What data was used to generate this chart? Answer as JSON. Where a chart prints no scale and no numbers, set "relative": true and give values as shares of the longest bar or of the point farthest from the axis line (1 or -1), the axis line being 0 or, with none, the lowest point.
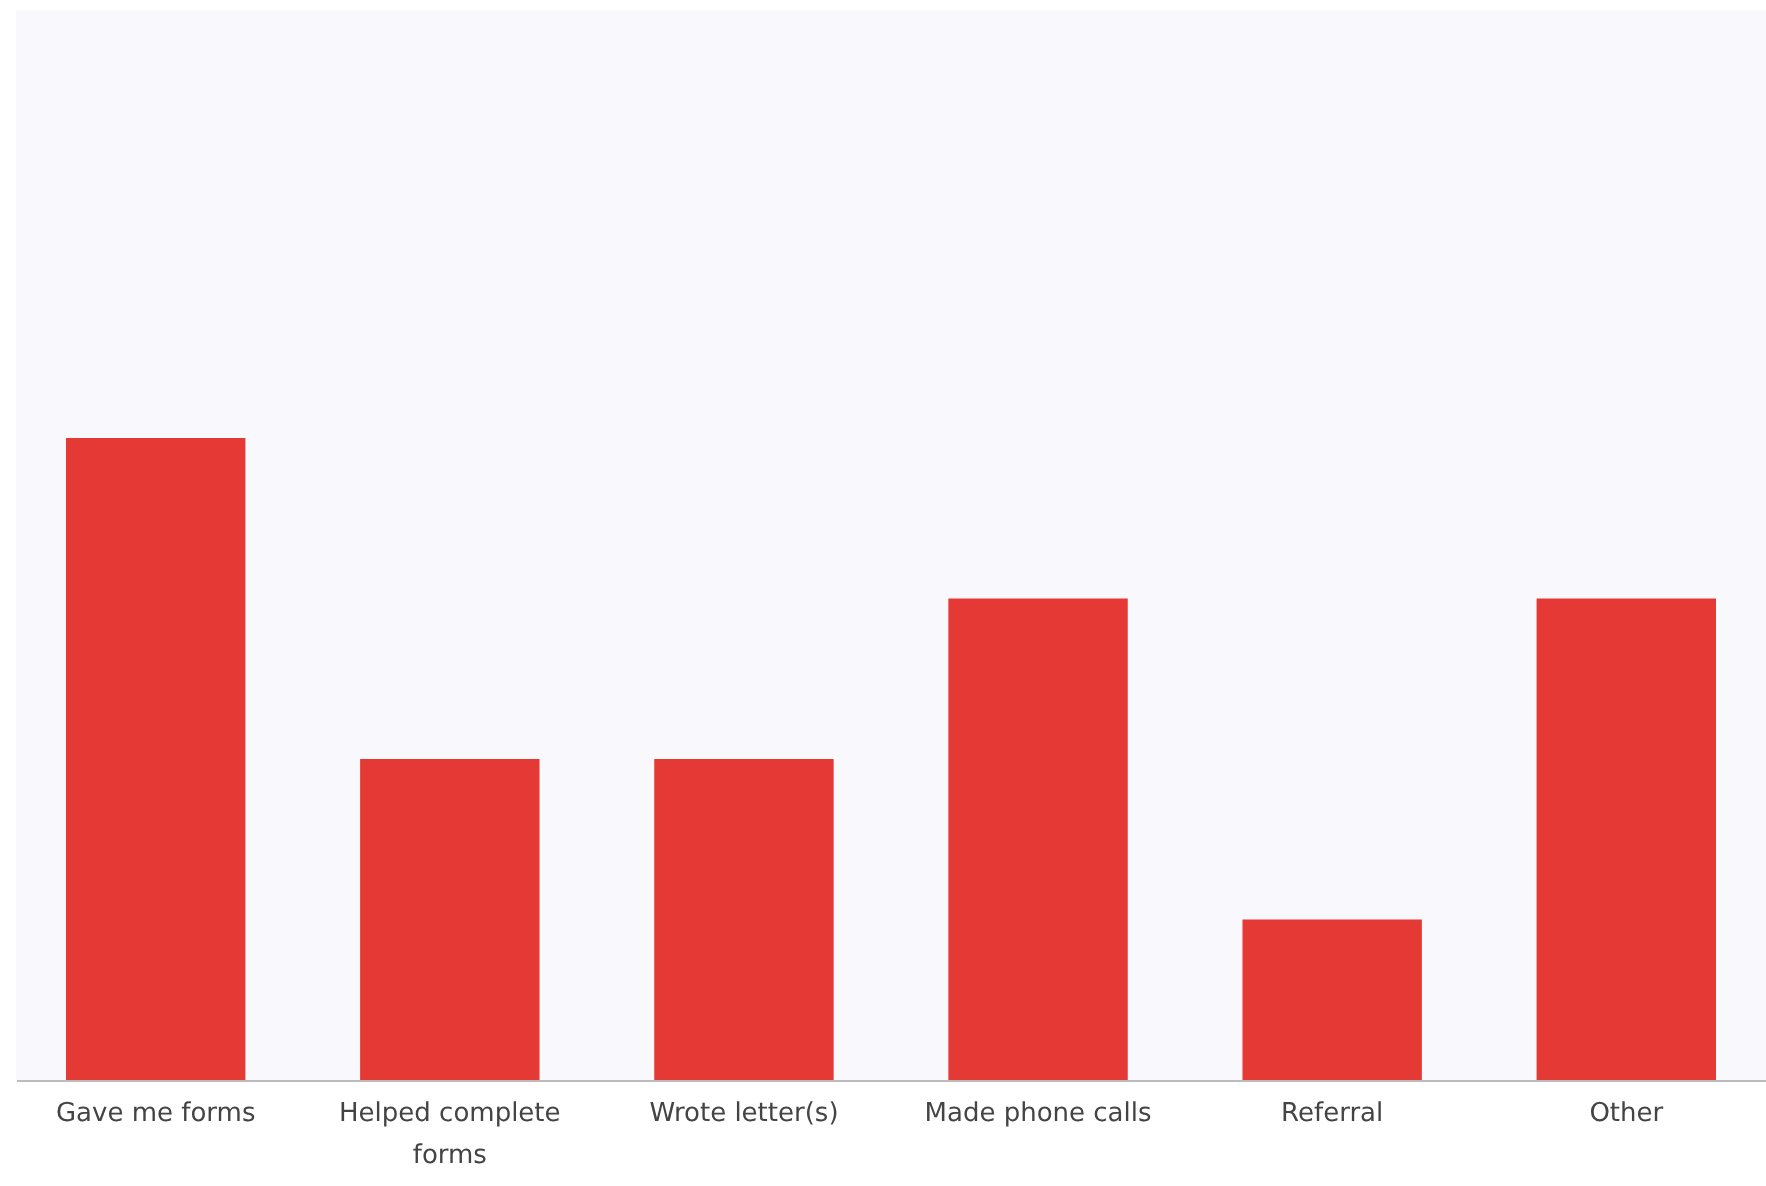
{
  "chart_data": {
    "type": "bar",
    "relative": true,
    "categories": [
      "Gave me forms",
      "Helped complete forms",
      "Wrote letter(s)",
      "Made phone calls",
      "Referral",
      "Other"
    ],
    "series": [
      {
        "color": "#e53935",
        "values": [
          1,
          0.5,
          0.5,
          0.75,
          0.25,
          0.75
        ]
      }
    ]
  }
}
